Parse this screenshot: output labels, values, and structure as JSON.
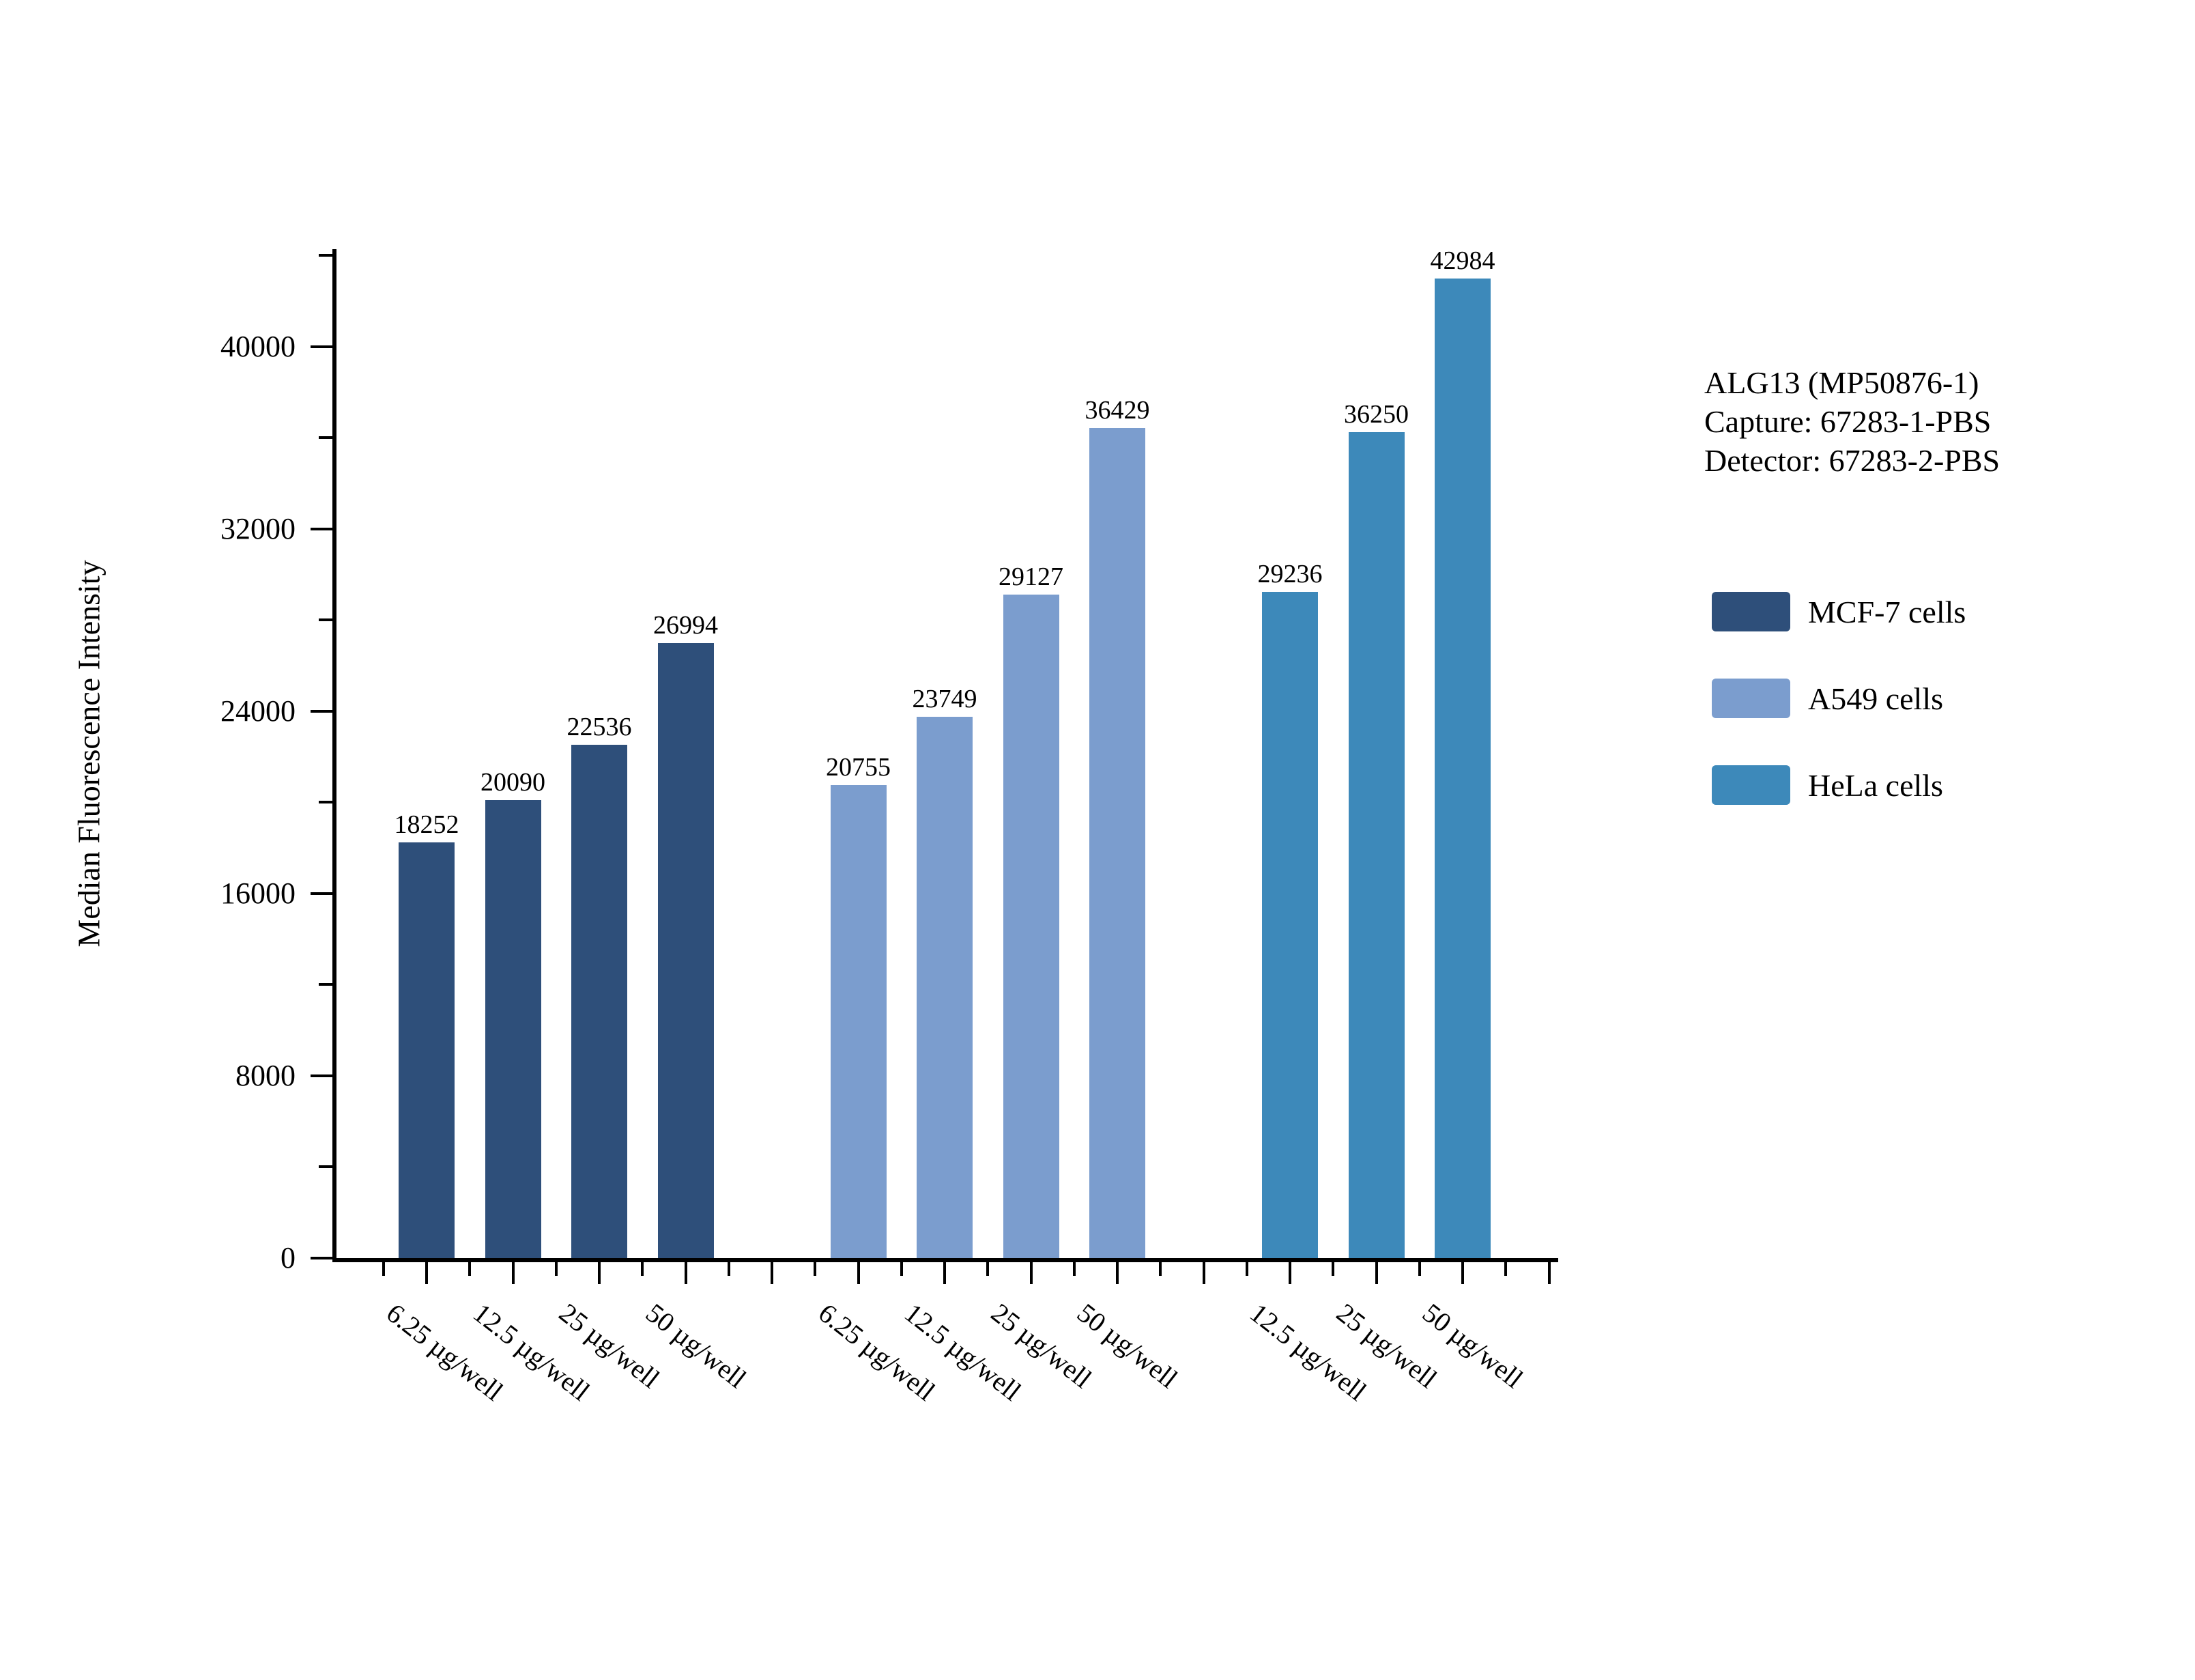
{
  "chart_data": {
    "type": "bar",
    "annotation_lines": [
      "ALG13 (MP50876-1)",
      "Capture: 67283-1-PBS",
      "Detector: 67283-2-PBS"
    ],
    "ylabel": "Median Fluorescence Intensity",
    "y_ticks": [
      0,
      8000,
      16000,
      24000,
      32000,
      40000
    ],
    "y_minor_step": 4000,
    "ylim": [
      0,
      44280
    ],
    "grid": false,
    "legend_position": "right",
    "groups": [
      {
        "name": "MCF-7 cells",
        "color": "#2e4f7a",
        "categories": [
          "6.25 µg/well",
          "12.5 µg/well",
          "25 µg/well",
          "50 µg/well"
        ],
        "values": [
          18252,
          20090,
          22536,
          26994
        ]
      },
      {
        "name": "A549 cells",
        "color": "#7b9dce",
        "categories": [
          "6.25 µg/well",
          "12.5 µg/well",
          "25 µg/well",
          "50 µg/well"
        ],
        "values": [
          20755,
          23749,
          29127,
          36429
        ]
      },
      {
        "name": "HeLa cells",
        "color": "#3d89ba",
        "categories": [
          "12.5 µg/well",
          "25 µg/well",
          "50 µg/well"
        ],
        "values": [
          29236,
          36250,
          42984
        ]
      }
    ]
  }
}
